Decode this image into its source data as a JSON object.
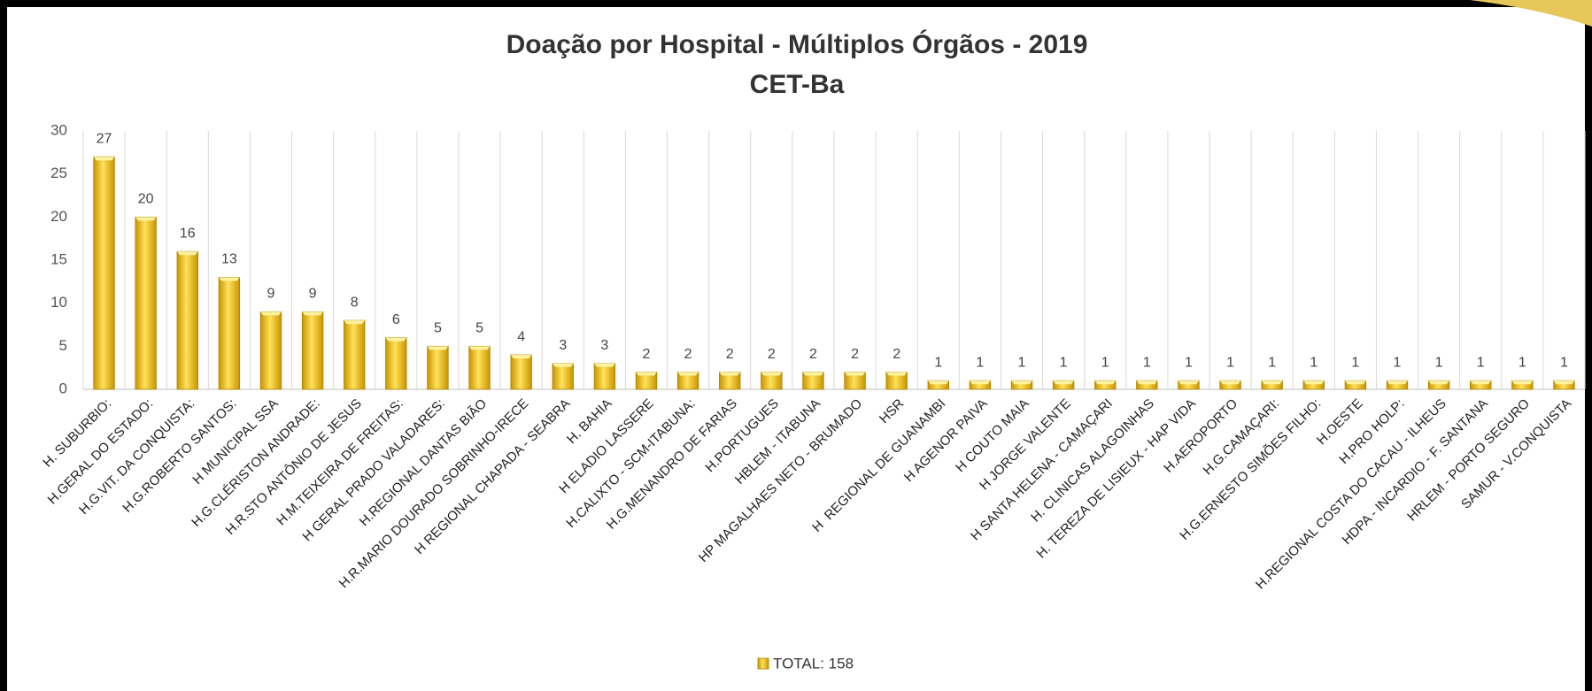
{
  "chart_data": {
    "type": "bar",
    "title": "Doação por Hospital - Múltiplos Órgãos - 2019",
    "subtitle": "CET-Ba",
    "categories": [
      "H. SUBURBIO:",
      "H.GERAL DO ESTADO:",
      "H.G.VIT. DA CONQUISTA:",
      "H.G.ROBERTO SANTOS:",
      "H MUNICIPAL SSA",
      "H.G.CLÉRISTON ANDRADE:",
      "H.R.STO ANTÔNIO DE JESUS",
      "H.M.TEIXEIRA DE FREITAS:",
      "H GERAL PRADO VALADARES:",
      "H.REGIONAL DANTAS BIÃO",
      "H.R.MARIO DOURADO SOBRINHO-IRECE",
      "H REGIONAL CHAPADA - SEABRA",
      "H. BAHIA",
      "H ELADIO LASSERE",
      "H.CALIXTO - SCM-ITABUNA:",
      "H.G.MENANDRO DE FARIAS",
      "H.PORTUGUES",
      "HBLEM - ITABUNA",
      "HP MAGALHAES NETO - BRUMADO",
      "HSR",
      "H  REGIONAL DE GUANAMBI",
      "H AGENOR PAIVA",
      "H COUTO MAIA",
      "H JORGE VALENTE",
      "H SANTA HELENA - CAMAÇARI",
      "H. CLINICAS ALAGOINHAS",
      "H. TEREZA DE LISIEUX - HAP VIDA",
      "H.AEROPORTO",
      "H.G.CAMAÇARI:",
      "H.G.ERNESTO SIMÕES FILHO:",
      "H.OESTE",
      "H.PRO HOLP:",
      "H.REGIONAL COSTA DO CACAU - ILHEUS",
      "HDPA - INCARDIO - F. SANTANA",
      "HRLEM - PORTO SEGURO",
      "SAMUR - V.CONQUISTA"
    ],
    "series": [
      {
        "name": "TOTAL: 158",
        "color": "#f5c400",
        "values": [
          27,
          20,
          16,
          13,
          9,
          9,
          8,
          6,
          5,
          5,
          4,
          3,
          3,
          2,
          2,
          2,
          2,
          2,
          2,
          2,
          1,
          1,
          1,
          1,
          1,
          1,
          1,
          1,
          1,
          1,
          1,
          1,
          1,
          1,
          1,
          1
        ]
      }
    ],
    "ylim": [
      0,
      30
    ],
    "yticks": [
      0,
      5,
      10,
      15,
      20,
      25,
      30
    ],
    "legend": "bottom"
  }
}
